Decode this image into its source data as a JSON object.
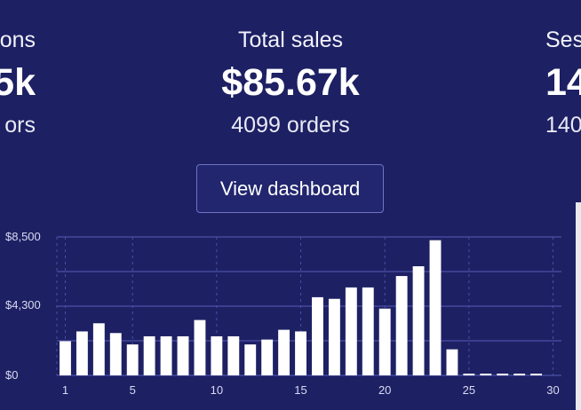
{
  "stats": {
    "left": {
      "label": "ons",
      "value": "5k",
      "sub": "ors"
    },
    "center": {
      "label": "Total sales",
      "value": "$85.67k",
      "sub": "4099 orders"
    },
    "right": {
      "label": "Ses",
      "value": "14",
      "sub": "140"
    }
  },
  "button": {
    "label": "View dashboard"
  },
  "colors": {
    "background": "#1d2063",
    "bar": "#ffffff",
    "grid": "#4c50a6"
  },
  "chart_data": {
    "type": "bar",
    "x": [
      1,
      2,
      3,
      4,
      5,
      6,
      7,
      8,
      9,
      10,
      11,
      12,
      13,
      14,
      15,
      16,
      17,
      18,
      19,
      20,
      21,
      22,
      23,
      24,
      25,
      26,
      27,
      28,
      29,
      30
    ],
    "values": [
      2100,
      2700,
      3200,
      2600,
      1900,
      2400,
      2400,
      2400,
      3400,
      2400,
      2400,
      1900,
      2200,
      2800,
      2700,
      4800,
      4700,
      5400,
      5400,
      4100,
      6100,
      6700,
      8300,
      1600,
      80,
      80,
      80,
      80,
      40,
      0
    ],
    "ylim": [
      0,
      8500
    ],
    "y_ticks": [
      "$0",
      "$4,300",
      "$8,500"
    ],
    "x_ticks": [
      "1",
      "5",
      "10",
      "15",
      "20",
      "25",
      "30"
    ],
    "grid": true
  }
}
